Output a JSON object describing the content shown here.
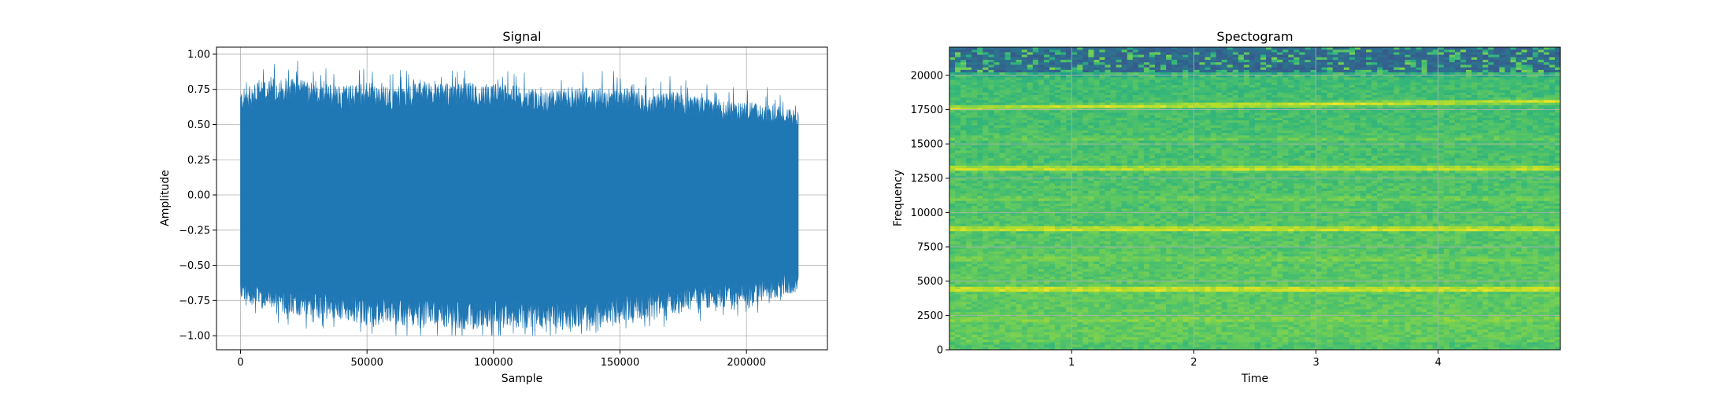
{
  "chart_data": [
    {
      "type": "line",
      "title": "Signal",
      "xlabel": "Sample",
      "ylabel": "Amplitude",
      "xlim": [
        -9500,
        232000
      ],
      "ylim": [
        -1.1,
        1.05
      ],
      "xticks": [
        0,
        50000,
        100000,
        150000,
        200000
      ],
      "xtick_labels": [
        "0",
        "50000",
        "100000",
        "150000",
        "200000"
      ],
      "yticks": [
        -1.0,
        -0.75,
        -0.5,
        -0.25,
        0.0,
        0.25,
        0.5,
        0.75,
        1.0
      ],
      "ytick_labels": [
        "−1.00",
        "−0.75",
        "−0.50",
        "−0.25",
        "0.00",
        "0.25",
        "0.50",
        "0.75",
        "1.00"
      ],
      "grid": true,
      "color": "#1f77b4",
      "series": [
        {
          "sample_range": [
            0,
            220500
          ],
          "envelope_samples": [
            0,
            10000,
            20000,
            30000,
            40000,
            50000,
            60000,
            70000,
            80000,
            90000,
            100000,
            110000,
            120000,
            130000,
            140000,
            150000,
            160000,
            170000,
            180000,
            190000,
            200000,
            210000,
            220500
          ],
          "upper_envelope": [
            0.75,
            0.82,
            0.85,
            0.8,
            0.78,
            0.8,
            0.76,
            0.82,
            0.78,
            0.8,
            0.79,
            0.78,
            0.74,
            0.77,
            0.76,
            0.78,
            0.72,
            0.74,
            0.7,
            0.68,
            0.66,
            0.64,
            0.6
          ],
          "lower_envelope": [
            -0.75,
            -0.82,
            -0.86,
            -0.88,
            -0.9,
            -0.93,
            -0.92,
            -0.95,
            -0.94,
            -0.96,
            -0.95,
            -0.95,
            -0.96,
            -0.95,
            -0.94,
            -0.9,
            -0.88,
            -0.86,
            -0.82,
            -0.8,
            -0.78,
            -0.74,
            -0.7
          ],
          "peak_max": 0.98,
          "peak_min": -1.0
        }
      ]
    },
    {
      "type": "heatmap",
      "title": "Spectogram",
      "xlabel": "Time",
      "ylabel": "Frequency",
      "xlim": [
        0,
        5.0
      ],
      "ylim": [
        0,
        22050
      ],
      "xticks": [
        1,
        2,
        3,
        4
      ],
      "xtick_labels": [
        "1",
        "2",
        "3",
        "4"
      ],
      "yticks": [
        0,
        2500,
        5000,
        7500,
        10000,
        12500,
        15000,
        17500,
        20000
      ],
      "ytick_labels": [
        "0",
        "2500",
        "5000",
        "7500",
        "10000",
        "12500",
        "15000",
        "17500",
        "20000"
      ],
      "grid": true,
      "colormap": "viridis",
      "harmonic_bands_hz": [
        4400,
        8800,
        13200,
        17600
      ],
      "weak_bands_hz": [
        2200,
        6600,
        11000,
        15400
      ],
      "high_frequency_cutoff_hz": 19800
    }
  ]
}
